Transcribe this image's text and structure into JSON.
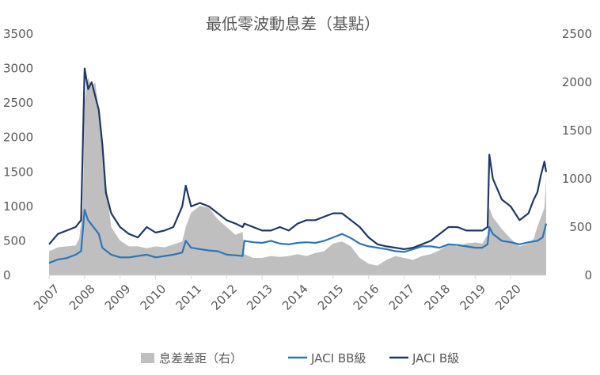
{
  "chart_data": {
    "type": "area",
    "title": "最低零波動息差（基點）",
    "x_range": [
      2007,
      2021
    ],
    "x_ticks": [
      "2007",
      "2008",
      "2009",
      "2010",
      "2011",
      "2012",
      "2013",
      "2014",
      "2015",
      "2016",
      "2017",
      "2018",
      "2019",
      "2020"
    ],
    "y_left": {
      "range": [
        0,
        3500
      ],
      "ticks": [
        "0",
        "500",
        "1000",
        "1500",
        "2000",
        "2500",
        "3000",
        "3500"
      ]
    },
    "y_right": {
      "range": [
        0,
        2500
      ],
      "ticks": [
        "0",
        "500",
        "1000",
        "1500",
        "2000",
        "2500"
      ]
    },
    "grid": false,
    "legend_position": "bottom",
    "legend": [
      "息差差距（右）",
      "JACI BB級",
      "JACI B級"
    ],
    "series": [
      {
        "name": "息差差距（右）",
        "axis": "right",
        "style": "area",
        "color": "#bfbfbf",
        "x": [
          2007.0,
          2007.25,
          2007.5,
          2007.75,
          2007.85,
          2007.95,
          2008.0,
          2008.1,
          2008.2,
          2008.3,
          2008.4,
          2008.5,
          2008.6,
          2008.75,
          2009.0,
          2009.25,
          2009.5,
          2009.75,
          2010.0,
          2010.25,
          2010.5,
          2010.75,
          2010.85,
          2011.0,
          2011.25,
          2011.5,
          2011.75,
          2012.0,
          2012.25,
          2012.45,
          2012.5,
          2012.75,
          2013.0,
          2013.25,
          2013.5,
          2013.75,
          2014.0,
          2014.25,
          2014.5,
          2014.75,
          2015.0,
          2015.25,
          2015.5,
          2015.75,
          2016.0,
          2016.25,
          2016.5,
          2016.75,
          2017.0,
          2017.25,
          2017.5,
          2017.75,
          2018.0,
          2018.25,
          2018.5,
          2018.75,
          2019.0,
          2019.2,
          2019.35,
          2019.4,
          2019.5,
          2019.75,
          2020.0,
          2020.25,
          2020.5,
          2020.65,
          2020.75,
          2020.85,
          2020.95,
          2021.0
        ],
        "values": [
          250,
          290,
          300,
          310,
          380,
          700,
          1800,
          2050,
          1950,
          2000,
          1700,
          1300,
          950,
          500,
          360,
          300,
          300,
          280,
          300,
          290,
          320,
          350,
          500,
          650,
          720,
          700,
          580,
          500,
          420,
          450,
          220,
          180,
          180,
          200,
          190,
          200,
          220,
          200,
          230,
          250,
          330,
          350,
          300,
          180,
          120,
          100,
          160,
          200,
          180,
          160,
          200,
          220,
          260,
          320,
          300,
          330,
          340,
          330,
          420,
          700,
          600,
          480,
          380,
          300,
          330,
          380,
          500,
          600,
          700,
          1000
        ]
      },
      {
        "name": "JACI BB級",
        "axis": "left",
        "style": "line",
        "color": "#2e75b6",
        "x": [
          2007.0,
          2007.25,
          2007.5,
          2007.75,
          2007.9,
          2008.0,
          2008.1,
          2008.25,
          2008.4,
          2008.5,
          2008.75,
          2009.0,
          2009.25,
          2009.5,
          2009.75,
          2010.0,
          2010.25,
          2010.5,
          2010.75,
          2010.85,
          2011.0,
          2011.25,
          2011.5,
          2011.75,
          2012.0,
          2012.25,
          2012.45,
          2012.5,
          2012.75,
          2013.0,
          2013.25,
          2013.5,
          2013.75,
          2014.0,
          2014.25,
          2014.5,
          2014.75,
          2015.0,
          2015.25,
          2015.5,
          2015.75,
          2016.0,
          2016.25,
          2016.5,
          2016.75,
          2017.0,
          2017.25,
          2017.5,
          2017.75,
          2018.0,
          2018.25,
          2018.5,
          2018.75,
          2019.0,
          2019.2,
          2019.35,
          2019.4,
          2019.5,
          2019.75,
          2020.0,
          2020.25,
          2020.5,
          2020.75,
          2020.9,
          2021.0
        ],
        "values": [
          180,
          230,
          250,
          300,
          350,
          950,
          800,
          700,
          600,
          400,
          300,
          260,
          260,
          280,
          300,
          260,
          280,
          300,
          330,
          500,
          400,
          380,
          360,
          350,
          300,
          290,
          280,
          500,
          480,
          470,
          500,
          460,
          450,
          470,
          480,
          470,
          500,
          550,
          600,
          540,
          460,
          420,
          400,
          380,
          350,
          340,
          380,
          420,
          420,
          400,
          450,
          440,
          420,
          400,
          400,
          450,
          700,
          600,
          500,
          480,
          450,
          480,
          500,
          550,
          750
        ]
      },
      {
        "name": "JACI B級",
        "axis": "left",
        "style": "line",
        "color": "#1f3864",
        "x": [
          2007.0,
          2007.25,
          2007.5,
          2007.75,
          2007.9,
          2008.0,
          2008.1,
          2008.2,
          2008.3,
          2008.4,
          2008.5,
          2008.6,
          2008.75,
          2009.0,
          2009.25,
          2009.5,
          2009.75,
          2010.0,
          2010.25,
          2010.5,
          2010.75,
          2010.85,
          2011.0,
          2011.25,
          2011.5,
          2011.75,
          2012.0,
          2012.25,
          2012.45,
          2012.5,
          2012.75,
          2013.0,
          2013.25,
          2013.5,
          2013.75,
          2014.0,
          2014.25,
          2014.5,
          2014.75,
          2015.0,
          2015.25,
          2015.5,
          2015.75,
          2016.0,
          2016.25,
          2016.5,
          2016.75,
          2017.0,
          2017.25,
          2017.5,
          2017.75,
          2018.0,
          2018.25,
          2018.5,
          2018.75,
          2019.0,
          2019.2,
          2019.35,
          2019.4,
          2019.5,
          2019.75,
          2020.0,
          2020.25,
          2020.5,
          2020.65,
          2020.75,
          2020.85,
          2020.95,
          2021.0
        ],
        "values": [
          450,
          600,
          650,
          700,
          800,
          3000,
          2700,
          2800,
          2600,
          2400,
          1900,
          1200,
          900,
          700,
          600,
          550,
          700,
          620,
          650,
          700,
          1000,
          1300,
          1000,
          1050,
          1000,
          900,
          800,
          750,
          700,
          750,
          700,
          650,
          650,
          700,
          650,
          750,
          800,
          800,
          850,
          900,
          900,
          800,
          700,
          550,
          450,
          420,
          400,
          380,
          400,
          450,
          500,
          600,
          700,
          700,
          650,
          650,
          650,
          700,
          1750,
          1400,
          1100,
          1000,
          800,
          900,
          1100,
          1200,
          1450,
          1650,
          1500
        ]
      }
    ]
  }
}
